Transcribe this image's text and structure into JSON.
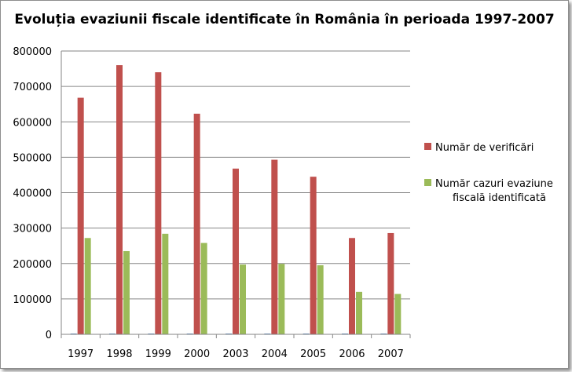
{
  "chart_data": {
    "type": "bar",
    "title": "Evoluția evaziunii fiscale identificate în România în perioada 1997-2007",
    "xlabel": "",
    "ylabel": "",
    "categories": [
      "1997",
      "1998",
      "1999",
      "2000",
      "2003",
      "2004",
      "2005",
      "2006",
      "2007"
    ],
    "ylim": [
      0,
      800000
    ],
    "yticks": [
      "0",
      "100000",
      "200000",
      "300000",
      "400000",
      "500000",
      "600000",
      "700000",
      "800000"
    ],
    "grid": true,
    "legend_position": "right",
    "series": [
      {
        "name": "",
        "color": "#4f81bd",
        "values": [
          0,
          0,
          0,
          0,
          0,
          0,
          0,
          0,
          0
        ]
      },
      {
        "name": "Număr de verificări",
        "color": "#c0504d",
        "values": [
          668000,
          760000,
          740000,
          623000,
          468000,
          493000,
          445000,
          272000,
          286000
        ]
      },
      {
        "name": "Număr cazuri evaziune fiscală identificată",
        "name_lines": [
          "Număr cazuri evaziune",
          "fiscală identificată"
        ],
        "color": "#9bbb59",
        "values": [
          272000,
          235000,
          284000,
          258000,
          197000,
          199000,
          195000,
          120000,
          114000
        ]
      }
    ]
  }
}
